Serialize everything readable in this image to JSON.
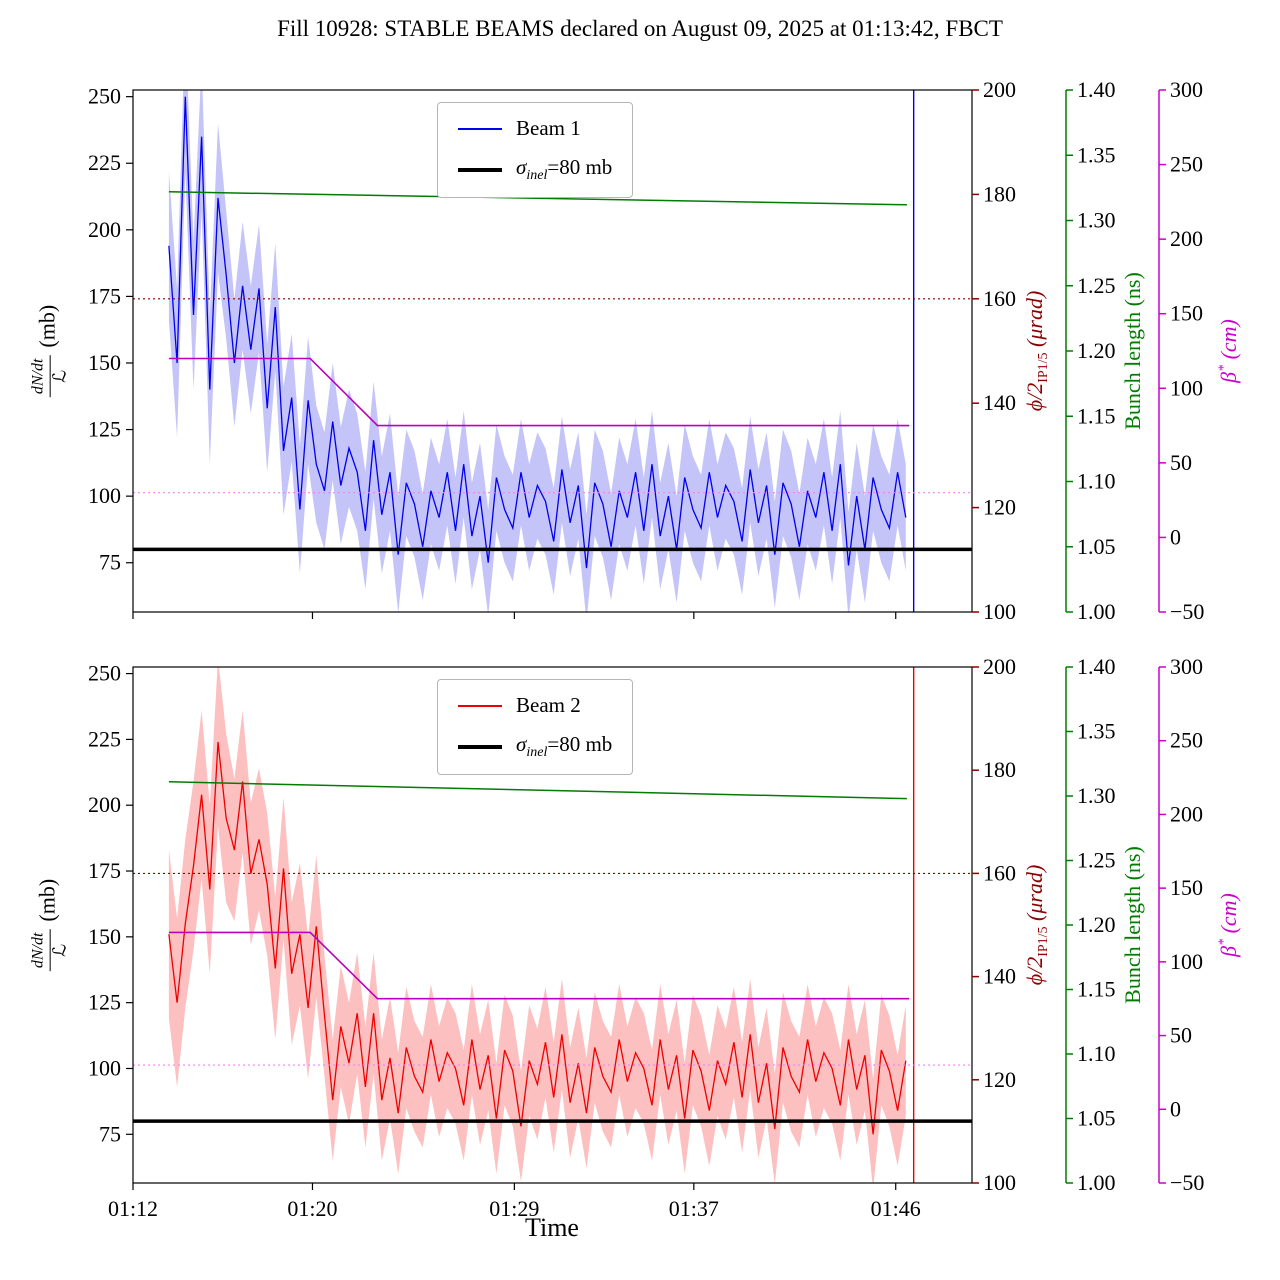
{
  "title": "Fill 10928: STABLE BEAMS declared on August 09, 2025 at 01:13:42, FBCT",
  "axes": {
    "x": {
      "label": "Time",
      "range_min": [
        72,
        109.4
      ],
      "tick_minutes": [
        72,
        80,
        89,
        97,
        106
      ],
      "tick_labels": [
        "01:12",
        "01:20",
        "01:29",
        "01:37",
        "01:46"
      ]
    },
    "left": {
      "label_num": "dN/dt",
      "label_den": "ℒ",
      "label_unit": "(mb)",
      "range": [
        56.5,
        252.5
      ],
      "ticks": [
        75,
        100,
        125,
        150,
        175,
        200,
        225,
        250
      ]
    },
    "red": {
      "label": "ϕ/2",
      "label_sub": "IP1/5",
      "label_unit": " (μrad)",
      "range": [
        100,
        200
      ],
      "ticks": [
        100,
        120,
        140,
        160,
        180,
        200
      ],
      "color": "#8b0000"
    },
    "green": {
      "label": "Bunch length (ns)",
      "range": [
        1.0,
        1.4
      ],
      "tick_values": [
        1.0,
        1.05,
        1.1,
        1.15,
        1.2,
        1.25,
        1.3,
        1.35,
        1.4
      ],
      "tick_labels": [
        "1.00",
        "1.05",
        "1.10",
        "1.15",
        "1.20",
        "1.25",
        "1.30",
        "1.35",
        "1.40"
      ],
      "color": "#007d00"
    },
    "magenta": {
      "label": "β",
      "label_sup": "*",
      "label_unit": " (cm)",
      "range": [
        -50,
        300
      ],
      "tick_values": [
        -50,
        0,
        50,
        100,
        150,
        200,
        250,
        300
      ],
      "tick_labels": [
        "−50",
        "0",
        "50",
        "100",
        "150",
        "200",
        "250",
        "300"
      ],
      "color": "#cc00cc"
    }
  },
  "chart_data": [
    {
      "type": "line",
      "beam": "Beam 1",
      "legend": {
        "beam_label": "Beam 1",
        "sigma": {
          "sym": "σ",
          "sub": "inel",
          "rest": "=80 mb"
        }
      },
      "colors": {
        "beam": "#0000ee",
        "band": "rgba(60,60,235,0.3)",
        "sigma": "#000000",
        "crossing": "#8b0000",
        "bunch": "#007d00",
        "beta": "#bb00bb",
        "beta_dotted": "#ee82ee"
      },
      "x_start_min": 73.6,
      "x_step_min": 0.365,
      "cross_section_mb": [
        194,
        150,
        250,
        168,
        235,
        140,
        212,
        183,
        150,
        179,
        155,
        178,
        133,
        171,
        117,
        137,
        95,
        136,
        112,
        102,
        128,
        104,
        118,
        109,
        87,
        121,
        93,
        109,
        78,
        105,
        97,
        81,
        102,
        92,
        109,
        87,
        112,
        85,
        100,
        75,
        107,
        95,
        88,
        109,
        92,
        104,
        98,
        83,
        110,
        90,
        104,
        73,
        105,
        97,
        81,
        102,
        92,
        109,
        87,
        112,
        85,
        100,
        80,
        107,
        95,
        88,
        109,
        92,
        104,
        98,
        83,
        110,
        90,
        104,
        78,
        105,
        97,
        81,
        102,
        92,
        109,
        87,
        112,
        74,
        100,
        80,
        107,
        95,
        88,
        109,
        92
      ],
      "band_halfwidth_breaks_min": [
        76,
        80,
        84
      ],
      "band_halfwidths_mb": [
        28,
        24,
        22,
        20
      ],
      "sigma_inel_mb": 80,
      "half_crossing_angle_urad": 160,
      "bunch_length_ns": {
        "x_min": [
          73.6,
          106.5
        ],
        "values": [
          1.322,
          1.312
        ]
      },
      "beta_star_cm": {
        "x_min": [
          73.6,
          79.9,
          82.9,
          106.6
        ],
        "values": [
          120,
          120,
          75,
          75
        ]
      },
      "beta_star_dotted_cm": 30,
      "end_spike_x_min": 106.8
    },
    {
      "type": "line",
      "beam": "Beam 2",
      "legend": {
        "beam_label": "Beam 2",
        "sigma": {
          "sym": "σ",
          "sub": "inel",
          "rest": "=80 mb"
        }
      },
      "colors": {
        "beam": "#ee0000",
        "band": "rgba(245,45,45,0.3)",
        "sigma": "#000000",
        "crossing": "#8b0000",
        "bunch": "#007d00",
        "beta": "#bb00bb",
        "beta_dotted": "#ee82ee"
      },
      "x_start_min": 73.6,
      "x_step_min": 0.365,
      "cross_section_mb": [
        151,
        125,
        155,
        177,
        204,
        168,
        224,
        195,
        183,
        209,
        174,
        187,
        170,
        138,
        176,
        136,
        151,
        123,
        154,
        120,
        88,
        116,
        102,
        121,
        93,
        121,
        88,
        104,
        83,
        108,
        97,
        91,
        111,
        95,
        106,
        100,
        86,
        111,
        92,
        105,
        81,
        107,
        99,
        78,
        103,
        94,
        110,
        89,
        113,
        87,
        102,
        83,
        108,
        97,
        91,
        111,
        95,
        106,
        100,
        86,
        111,
        92,
        105,
        81,
        107,
        99,
        84,
        103,
        94,
        110,
        89,
        113,
        87,
        102,
        77,
        108,
        97,
        91,
        111,
        95,
        106,
        100,
        86,
        111,
        92,
        105,
        75,
        107,
        99,
        84,
        103
      ],
      "band_halfwidth_breaks_min": [
        76.5,
        80.5,
        84.5
      ],
      "band_halfwidths_mb": [
        32,
        27,
        23,
        21
      ],
      "sigma_inel_mb": 80,
      "half_crossing_angle_urad": 160,
      "bunch_length_ns": {
        "x_min": [
          73.6,
          106.5
        ],
        "values": [
          1.311,
          1.298
        ]
      },
      "beta_star_cm": {
        "x_min": [
          73.6,
          79.9,
          82.9,
          106.6
        ],
        "values": [
          120,
          120,
          75,
          75
        ]
      },
      "beta_star_dotted_cm": 30,
      "end_spike_x_min": 106.8
    }
  ]
}
